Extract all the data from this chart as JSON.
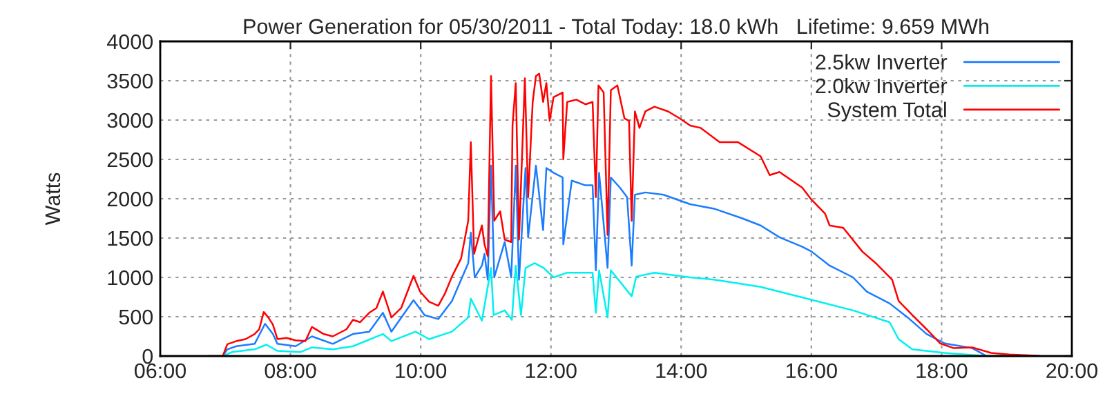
{
  "chart_data": {
    "type": "line",
    "title": "Power Generation for 05/30/2011 - Total Today: 18.0 kWh   Lifetime: 9.659 MWh",
    "ylabel": "Watts",
    "xlim": [
      6,
      20
    ],
    "xticks": [
      {
        "value": 6,
        "label": "06:00"
      },
      {
        "value": 8,
        "label": "08:00"
      },
      {
        "value": 10,
        "label": "10:00"
      },
      {
        "value": 12,
        "label": "12:00"
      },
      {
        "value": 14,
        "label": "14:00"
      },
      {
        "value": 16,
        "label": "16:00"
      },
      {
        "value": 18,
        "label": "18:00"
      },
      {
        "value": 20,
        "label": "20:00"
      }
    ],
    "ylim": [
      0,
      4000
    ],
    "yticks": [
      0,
      500,
      1000,
      1500,
      2000,
      2500,
      3000,
      3500,
      4000
    ],
    "grid": true,
    "legend": "top right",
    "line_style": "solid",
    "marker": "none",
    "series": [
      {
        "name": "2.5kw Inverter",
        "color": "#1a7cff",
        "x": [
          6.96,
          7.03,
          7.17,
          7.45,
          7.61,
          7.73,
          7.8,
          8.08,
          8.33,
          8.65,
          8.96,
          9.21,
          9.42,
          9.55,
          9.89,
          10.06,
          10.27,
          10.48,
          10.62,
          10.73,
          10.77,
          10.83,
          10.94,
          10.98,
          11.03,
          11.08,
          11.13,
          11.29,
          11.39,
          11.46,
          11.51,
          11.61,
          11.65,
          11.77,
          11.88,
          11.93,
          12.04,
          12.18,
          12.19,
          12.32,
          12.53,
          12.64,
          12.69,
          12.74,
          12.87,
          12.92,
          13.06,
          13.17,
          13.24,
          13.29,
          13.45,
          13.73,
          14.14,
          14.52,
          14.94,
          15.22,
          15.51,
          15.86,
          16.0,
          16.28,
          16.64,
          16.85,
          17.2,
          17.48,
          17.77,
          18.05,
          18.47,
          18.69,
          19.5
        ],
        "values": [
          0,
          85,
          125,
          155,
          410,
          280,
          155,
          125,
          250,
          155,
          280,
          310,
          550,
          310,
          710,
          520,
          470,
          700,
          970,
          1180,
          1570,
          1000,
          1150,
          1300,
          970,
          2420,
          1000,
          1450,
          1000,
          2420,
          970,
          2390,
          1510,
          2420,
          1600,
          2390,
          2330,
          2270,
          1420,
          2230,
          2170,
          2170,
          1090,
          2330,
          1120,
          2270,
          2140,
          2020,
          1150,
          2050,
          2080,
          2050,
          1930,
          1870,
          1750,
          1660,
          1510,
          1390,
          1330,
          1150,
          1000,
          820,
          670,
          490,
          280,
          160,
          100,
          0,
          0
        ]
      },
      {
        "name": "2.0kw Inverter",
        "color": "#00f0f0",
        "x": [
          6.96,
          7.1,
          7.45,
          7.63,
          7.8,
          8.15,
          8.33,
          8.65,
          8.96,
          9.42,
          9.55,
          9.92,
          10.13,
          10.48,
          10.73,
          10.77,
          10.94,
          11.08,
          11.12,
          11.29,
          11.4,
          11.46,
          11.54,
          11.61,
          11.75,
          11.89,
          12.04,
          12.25,
          12.64,
          12.69,
          12.74,
          12.87,
          12.92,
          13.24,
          13.31,
          13.59,
          14.14,
          14.52,
          15.22,
          15.93,
          16.64,
          17.2,
          17.34,
          17.55,
          18.05,
          18.69,
          19.5
        ],
        "values": [
          0,
          50,
          85,
          145,
          65,
          50,
          110,
          85,
          125,
          280,
          190,
          310,
          215,
          310,
          490,
          730,
          450,
          1120,
          520,
          580,
          460,
          1150,
          520,
          1120,
          1180,
          1120,
          1000,
          1060,
          1060,
          550,
          1090,
          490,
          1090,
          760,
          1010,
          1060,
          1000,
          970,
          880,
          730,
          580,
          430,
          215,
          85,
          40,
          0,
          0
        ]
      },
      {
        "name": "System Total",
        "color": "#ff0000",
        "x": [
          6.75,
          6.96,
          7.03,
          7.17,
          7.31,
          7.45,
          7.52,
          7.59,
          7.66,
          7.73,
          7.8,
          7.94,
          8.08,
          8.23,
          8.33,
          8.51,
          8.65,
          8.86,
          8.96,
          9.07,
          9.21,
          9.32,
          9.42,
          9.55,
          9.7,
          9.89,
          9.99,
          10.13,
          10.27,
          10.37,
          10.48,
          10.62,
          10.73,
          10.77,
          10.82,
          10.94,
          10.98,
          11.03,
          11.08,
          11.13,
          11.22,
          11.29,
          11.39,
          11.41,
          11.46,
          11.51,
          11.6,
          11.65,
          11.72,
          11.77,
          11.82,
          11.88,
          11.93,
          11.98,
          12.04,
          12.18,
          12.19,
          12.25,
          12.39,
          12.53,
          12.64,
          12.69,
          12.73,
          12.81,
          12.87,
          12.92,
          13.02,
          13.13,
          13.2,
          13.24,
          13.29,
          13.36,
          13.45,
          13.59,
          13.8,
          13.98,
          14.14,
          14.3,
          14.59,
          14.87,
          15.22,
          15.36,
          15.51,
          15.86,
          16.0,
          16.21,
          16.28,
          16.49,
          16.78,
          16.99,
          17.24,
          17.34,
          17.55,
          17.77,
          17.98,
          18.19,
          18.47,
          18.76,
          19.04,
          19.46,
          19.5
        ],
        "values": [
          0,
          0,
          150,
          190,
          215,
          280,
          340,
          560,
          490,
          400,
          215,
          230,
          200,
          190,
          370,
          280,
          250,
          340,
          460,
          430,
          550,
          610,
          820,
          490,
          610,
          1020,
          820,
          690,
          640,
          790,
          1010,
          1240,
          1720,
          2720,
          1300,
          1660,
          1420,
          1270,
          3560,
          1720,
          1840,
          1480,
          1450,
          2930,
          3470,
          1480,
          3530,
          2020,
          3230,
          3560,
          3590,
          3230,
          3470,
          2990,
          3290,
          3350,
          2500,
          3230,
          3260,
          3200,
          3230,
          2020,
          3440,
          3350,
          1540,
          3380,
          3440,
          3020,
          2990,
          1720,
          3110,
          2900,
          3110,
          3170,
          3110,
          3020,
          2930,
          2900,
          2720,
          2720,
          2540,
          2300,
          2340,
          2140,
          1990,
          1810,
          1660,
          1630,
          1330,
          1180,
          970,
          700,
          520,
          340,
          160,
          100,
          110,
          40,
          20,
          5,
          0
        ]
      }
    ]
  }
}
